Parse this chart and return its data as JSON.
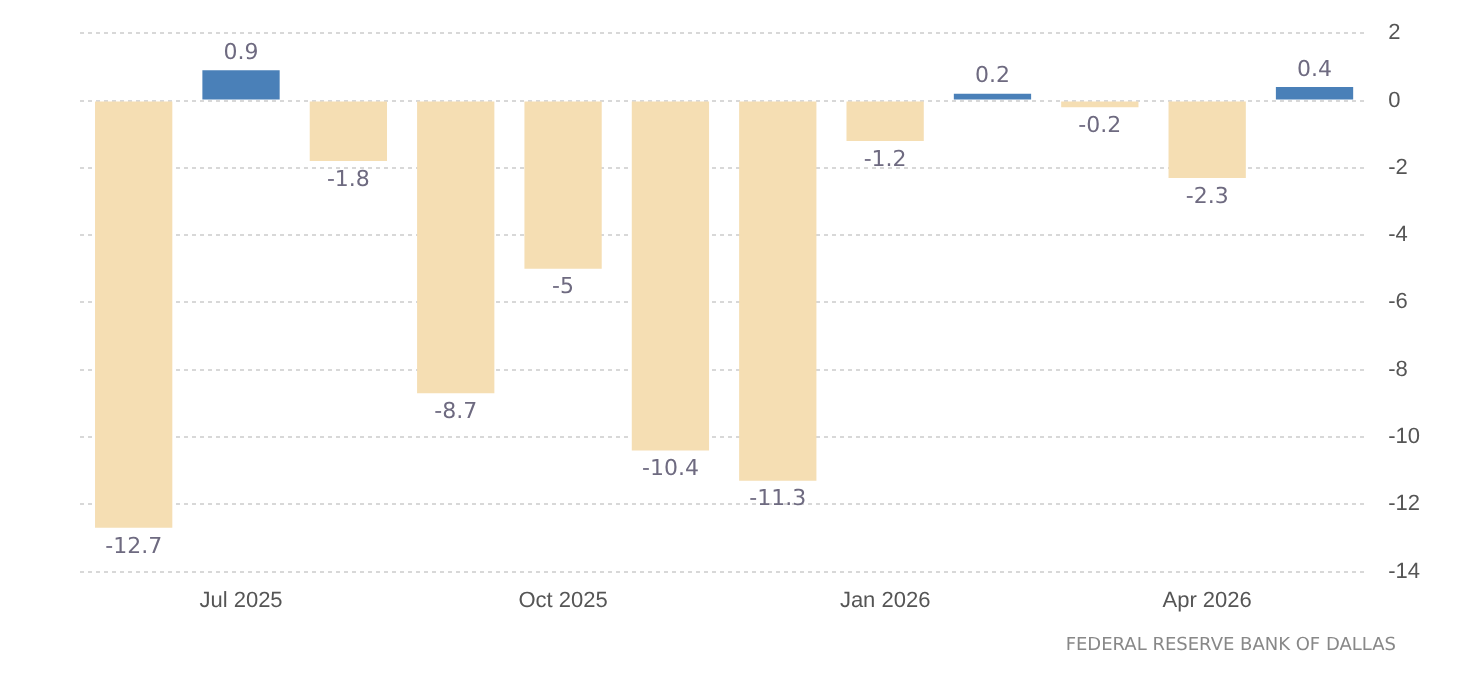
{
  "chart_data": {
    "type": "bar",
    "categories": [
      null,
      "Jul 2025",
      null,
      null,
      "Oct 2025",
      null,
      null,
      "Jan 2026",
      null,
      null,
      "Apr 2026",
      null
    ],
    "values": [
      -12.7,
      0.9,
      -1.8,
      -8.7,
      -5,
      -10.4,
      -11.3,
      -1.2,
      0.2,
      -0.2,
      -2.3,
      0.4
    ],
    "colors": [
      "#f5deb3",
      "#4a80b8",
      "#f5deb3",
      "#f5deb3",
      "#f5deb3",
      "#f5deb3",
      "#f5deb3",
      "#f5deb3",
      "#4a80b8",
      "#f5deb3",
      "#f5deb3",
      "#4a80b8"
    ],
    "ylim": [
      -14,
      2
    ],
    "yticks": [
      2,
      0,
      -2,
      -4,
      -6,
      -8,
      -10,
      -12,
      -14
    ],
    "grid": "y",
    "legend": false,
    "data_labels": true,
    "annotations": [
      "FEDERAL RESERVE BANK OF DALLAS"
    ]
  }
}
